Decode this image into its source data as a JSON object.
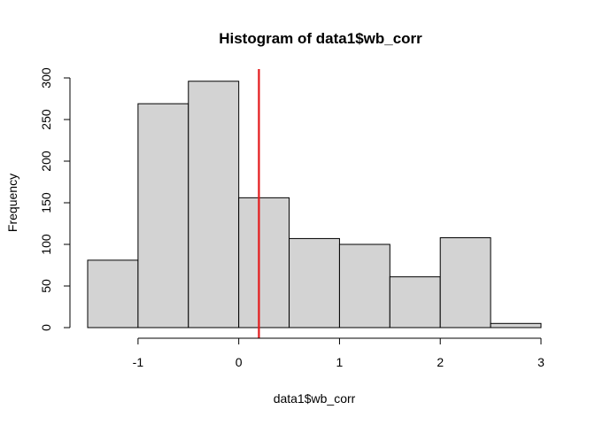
{
  "chart_data": {
    "type": "bar",
    "title": "Histogram of data1$wb_corr",
    "xlabel": "data1$wb_corr",
    "ylabel": "Frequency",
    "bins": [
      {
        "from": -1.5,
        "to": -1.0,
        "count": 81
      },
      {
        "from": -1.0,
        "to": -0.5,
        "count": 269
      },
      {
        "from": -0.5,
        "to": 0.0,
        "count": 296
      },
      {
        "from": 0.0,
        "to": 0.5,
        "count": 156
      },
      {
        "from": 0.5,
        "to": 1.0,
        "count": 107
      },
      {
        "from": 1.0,
        "to": 1.5,
        "count": 100
      },
      {
        "from": 1.5,
        "to": 2.0,
        "count": 61
      },
      {
        "from": 2.0,
        "to": 2.5,
        "count": 108
      },
      {
        "from": 2.5,
        "to": 3.0,
        "count": 5
      }
    ],
    "xlim": [
      -1.5,
      3.0
    ],
    "ylim": [
      0,
      300
    ],
    "xticks": [
      -1,
      0,
      1,
      2,
      3
    ],
    "xtick_labels": [
      "-1",
      "0",
      "1",
      "2",
      "3"
    ],
    "yticks": [
      0,
      50,
      100,
      150,
      200,
      250,
      300
    ],
    "ytick_labels": [
      "0",
      "50",
      "100",
      "150",
      "200",
      "250",
      "300"
    ],
    "vline": {
      "x": 0.2,
      "color": "#e41a1c"
    },
    "bar_fill": "#d3d3d3",
    "grid": false
  }
}
